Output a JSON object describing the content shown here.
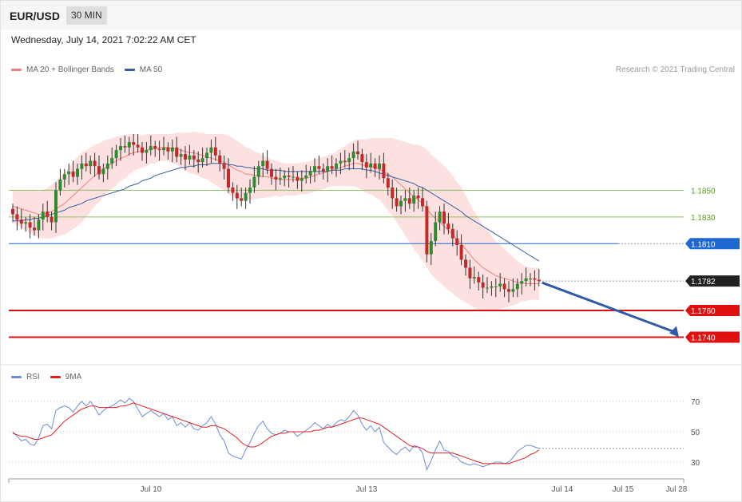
{
  "header": {
    "symbol": "EUR/USD",
    "timeframe": "30 MIN"
  },
  "datetime": "Wednesday, July 14, 2021 7:02:22 AM CET",
  "legend_main": [
    {
      "label": "MA 20 + Bollinger Bands",
      "color": "#f08080"
    },
    {
      "label": "MA 50",
      "color": "#3a5fa0"
    }
  ],
  "legend_rsi": [
    {
      "label": "RSI",
      "color": "#6b8cd8"
    },
    {
      "label": "9MA",
      "color": "#e02020"
    }
  ],
  "credit": "Research © 2021 Trading Central",
  "colors": {
    "up": "#2e8b2e",
    "down": "#c62828",
    "band": "#fde0e0",
    "ma20": "#f08080",
    "ma50": "#3a5fa0",
    "arrow": "#2f5aa8"
  },
  "chart_data": [
    {
      "type": "candlestick",
      "title": "EUR/USD",
      "ylim": [
        1.172,
        1.1935
      ],
      "levels": [
        {
          "label": "1.1850",
          "value": 1.185,
          "kind": "thin",
          "color": "#8dc060"
        },
        {
          "label": "1.1830",
          "value": 1.183,
          "kind": "thin",
          "color": "#8dc060"
        },
        {
          "label": "1.1810",
          "value": 1.181,
          "kind": "flag",
          "color": "#1e66d0"
        },
        {
          "label": "1.1782",
          "value": 1.1782,
          "kind": "flag",
          "color": "#222222"
        },
        {
          "label": "1.1760",
          "value": 1.176,
          "kind": "flag",
          "color": "#e01010"
        },
        {
          "label": "1.1740",
          "value": 1.174,
          "kind": "flag",
          "color": "#e01010"
        }
      ],
      "close": [
        1.1832,
        1.1828,
        1.1825,
        1.1826,
        1.1822,
        1.182,
        1.1828,
        1.1834,
        1.183,
        1.1826,
        1.185,
        1.1858,
        1.1862,
        1.1864,
        1.186,
        1.1866,
        1.187,
        1.1868,
        1.1872,
        1.1868,
        1.1862,
        1.1866,
        1.187,
        1.1874,
        1.188,
        1.1883,
        1.1882,
        1.1886,
        1.1884,
        1.1882,
        1.1878,
        1.188,
        1.1883,
        1.1881,
        1.188,
        1.1882,
        1.1879,
        1.1882,
        1.1875,
        1.1877,
        1.1873,
        1.1876,
        1.1873,
        1.1871,
        1.1874,
        1.1878,
        1.1882,
        1.1876,
        1.187,
        1.1866,
        1.1852,
        1.1848,
        1.1844,
        1.1842,
        1.1848,
        1.1852,
        1.186,
        1.1868,
        1.1872,
        1.1866,
        1.186,
        1.1858,
        1.1859,
        1.1861,
        1.186,
        1.186,
        1.1857,
        1.1859,
        1.1861,
        1.1864,
        1.1868,
        1.1866,
        1.1864,
        1.1868,
        1.1866,
        1.187,
        1.1872,
        1.1871,
        1.1874,
        1.1879,
        1.1877,
        1.1871,
        1.1867,
        1.187,
        1.1866,
        1.187,
        1.1859,
        1.1852,
        1.1844,
        1.1838,
        1.1842,
        1.1844,
        1.184,
        1.1846,
        1.1844,
        1.1838,
        1.1802,
        1.1812,
        1.1826,
        1.1834,
        1.1825,
        1.1821,
        1.1814,
        1.1809,
        1.1798,
        1.1792,
        1.1784,
        1.1785,
        1.1781,
        1.1777,
        1.1777,
        1.1778,
        1.1778,
        1.178,
        1.1776,
        1.1774,
        1.1776,
        1.178,
        1.1782,
        1.1784,
        1.1784,
        1.1783,
        1.1782
      ],
      "ma20": [
        1.1838,
        1.1837,
        1.1836,
        1.1835,
        1.1834,
        1.1833,
        1.1832,
        1.1832,
        1.1833,
        1.1834,
        1.1836,
        1.1838,
        1.184,
        1.1843,
        1.1846,
        1.1849,
        1.1852,
        1.1855,
        1.1858,
        1.1861,
        1.1863,
        1.1866,
        1.1868,
        1.187,
        1.1872,
        1.1874,
        1.1875,
        1.1877,
        1.1878,
        1.1879,
        1.1879,
        1.188,
        1.1881,
        1.1881,
        1.1882,
        1.1882,
        1.1882,
        1.1881,
        1.1881,
        1.188,
        1.1879,
        1.1878,
        1.1878,
        1.1877,
        1.1876,
        1.1875,
        1.1874,
        1.1873,
        1.1872,
        1.1871,
        1.1869,
        1.1867,
        1.1865,
        1.1864,
        1.1862,
        1.1862,
        1.1861,
        1.1861,
        1.186,
        1.186,
        1.1859,
        1.1859,
        1.1858,
        1.1858,
        1.1858,
        1.1858,
        1.1858,
        1.1859,
        1.1859,
        1.186,
        1.1861,
        1.1862,
        1.1863,
        1.1864,
        1.1865,
        1.1866,
        1.1867,
        1.1868,
        1.1869,
        1.187,
        1.187,
        1.1869,
        1.1868,
        1.1868,
        1.1867,
        1.1866,
        1.1864,
        1.1862,
        1.186,
        1.1857,
        1.1854,
        1.1851,
        1.1848,
        1.1845,
        1.1843,
        1.184,
        1.1836,
        1.1832,
        1.1829,
        1.1826,
        1.1823,
        1.182,
        1.1817,
        1.1813,
        1.181,
        1.1806,
        1.1802,
        1.1798,
        1.1795,
        1.1792,
        1.179,
        1.1788,
        1.1786,
        1.1785,
        1.1784,
        1.1783,
        1.1782,
        1.1781,
        1.1781,
        1.178,
        1.178,
        1.178,
        1.178
      ],
      "ma50": [
        1.1827,
        1.1827,
        1.1827,
        1.1828,
        1.1828,
        1.1829,
        1.1829,
        1.183,
        1.1831,
        1.1832,
        1.1833,
        1.1834,
        1.1835,
        1.1837,
        1.1838,
        1.1839,
        1.184,
        1.1842,
        1.1843,
        1.1844,
        1.1845,
        1.1846,
        1.1847,
        1.1848,
        1.1849,
        1.185,
        1.1851,
        1.1853,
        1.1854,
        1.1855,
        1.1857,
        1.1858,
        1.1859,
        1.1861,
        1.1862,
        1.1863,
        1.1864,
        1.1865,
        1.1866,
        1.1867,
        1.1867,
        1.1868,
        1.1868,
        1.1869,
        1.1869,
        1.1869,
        1.187,
        1.187,
        1.187,
        1.187,
        1.1869,
        1.1869,
        1.1868,
        1.1868,
        1.1867,
        1.1867,
        1.1866,
        1.1866,
        1.1866,
        1.1865,
        1.1865,
        1.1865,
        1.1865,
        1.1864,
        1.1864,
        1.1864,
        1.1864,
        1.1864,
        1.1864,
        1.1864,
        1.1864,
        1.1864,
        1.1864,
        1.1864,
        1.1865,
        1.1865,
        1.1865,
        1.1866,
        1.1866,
        1.1866,
        1.1866,
        1.1866,
        1.1865,
        1.1865,
        1.1864,
        1.1863,
        1.1862,
        1.1861,
        1.186,
        1.1859,
        1.1858,
        1.1857,
        1.1856,
        1.1855,
        1.1853,
        1.1852,
        1.185,
        1.1848,
        1.1846,
        1.1844,
        1.1842,
        1.184,
        1.1838,
        1.1836,
        1.1834,
        1.1831,
        1.1829,
        1.1827,
        1.1825,
        1.1823,
        1.1821,
        1.1819,
        1.1817,
        1.1815,
        1.1813,
        1.1811,
        1.1809,
        1.1807,
        1.1805,
        1.1803,
        1.1801,
        1.1799,
        1.1797
      ],
      "bb_width": [
        0.0012,
        0.0013,
        0.0014,
        0.0015,
        0.0016,
        0.0017,
        0.0017,
        0.0018,
        0.0019,
        0.002,
        0.0021,
        0.0022,
        0.0023,
        0.0024,
        0.0025,
        0.0026,
        0.0026,
        0.0025,
        0.0024,
        0.0023,
        0.0022,
        0.0021,
        0.002,
        0.0019,
        0.0018,
        0.0017,
        0.0016,
        0.0015,
        0.0014,
        0.0013,
        0.0012,
        0.0012,
        0.0011,
        0.0011,
        0.001,
        0.001,
        0.001,
        0.0011,
        0.0012,
        0.0013,
        0.0014,
        0.0015,
        0.0016,
        0.0016,
        0.0017,
        0.0017,
        0.0018,
        0.0019,
        0.002,
        0.0021,
        0.0022,
        0.0022,
        0.0022,
        0.0021,
        0.002,
        0.0019,
        0.0018,
        0.0017,
        0.0016,
        0.0015,
        0.0014,
        0.0013,
        0.0013,
        0.0012,
        0.0012,
        0.0012,
        0.0012,
        0.0012,
        0.0012,
        0.0012,
        0.0012,
        0.0012,
        0.0012,
        0.0012,
        0.0012,
        0.0013,
        0.0014,
        0.0015,
        0.0016,
        0.0017,
        0.0018,
        0.0019,
        0.002,
        0.0021,
        0.0022,
        0.0023,
        0.0025,
        0.0027,
        0.0029,
        0.0031,
        0.0033,
        0.0035,
        0.0037,
        0.0039,
        0.0041,
        0.0043,
        0.0044,
        0.0045,
        0.0045,
        0.0045,
        0.0045,
        0.0045,
        0.0044,
        0.0043,
        0.0042,
        0.004,
        0.0038,
        0.0036,
        0.0034,
        0.0032,
        0.003,
        0.0028,
        0.0026,
        0.0024,
        0.0022,
        0.002,
        0.0018,
        0.0016,
        0.0014,
        0.0013,
        0.0012,
        0.0012,
        0.0012,
        0.0012,
        0.0012
      ],
      "forecast": {
        "from": 1.1782,
        "to": 1.174
      }
    },
    {
      "type": "line",
      "title": "RSI",
      "ylim": [
        20,
        80
      ],
      "yticks": [
        70,
        50,
        30
      ],
      "xticks": [
        "Jul 10",
        "Jul 13",
        "Jul 14",
        "Jul 15",
        "Jul 28"
      ],
      "series": [
        {
          "name": "RSI",
          "color": "#6b8cd8",
          "values": [
            50,
            47,
            44,
            45,
            42,
            41,
            46,
            54,
            55,
            52,
            64,
            66,
            67,
            66,
            63,
            67,
            70,
            67,
            70,
            66,
            61,
            64,
            66,
            67,
            69,
            71,
            69,
            72,
            70,
            65,
            60,
            62,
            64,
            62,
            60,
            62,
            58,
            60,
            54,
            56,
            53,
            56,
            52,
            51,
            54,
            56,
            60,
            55,
            48,
            44,
            36,
            34,
            33,
            32,
            38,
            43,
            49,
            54,
            57,
            52,
            49,
            48,
            49,
            51,
            50,
            50,
            47,
            49,
            51,
            53,
            56,
            54,
            52,
            55,
            53,
            56,
            58,
            57,
            60,
            64,
            61,
            55,
            51,
            54,
            50,
            53,
            43,
            40,
            37,
            35,
            38,
            40,
            37,
            41,
            40,
            36,
            25,
            31,
            38,
            44,
            38,
            37,
            34,
            33,
            30,
            29,
            28,
            29,
            28,
            27,
            28,
            29,
            30,
            30,
            29,
            30,
            33,
            37,
            39,
            41,
            41,
            40,
            39
          ]
        },
        {
          "name": "9MA",
          "color": "#e02020",
          "values": [
            49,
            48,
            47,
            47,
            46,
            45,
            45,
            46,
            47,
            48,
            51,
            54,
            57,
            59,
            61,
            63,
            65,
            66,
            67,
            67,
            66,
            66,
            66,
            66,
            66,
            67,
            67,
            68,
            69,
            68,
            67,
            66,
            65,
            64,
            63,
            62,
            61,
            60,
            59,
            58,
            57,
            56,
            55,
            54,
            53,
            53,
            54,
            54,
            53,
            52,
            50,
            48,
            46,
            43,
            41,
            40,
            40,
            41,
            43,
            45,
            47,
            48,
            49,
            49,
            50,
            50,
            50,
            50,
            50,
            50,
            51,
            51,
            52,
            53,
            53,
            54,
            55,
            56,
            57,
            58,
            59,
            59,
            58,
            57,
            56,
            55,
            53,
            51,
            49,
            47,
            45,
            43,
            41,
            40,
            40,
            39,
            37,
            36,
            36,
            36,
            36,
            36,
            36,
            35,
            34,
            33,
            32,
            31,
            30,
            29,
            29,
            29,
            29,
            29,
            29,
            29,
            30,
            31,
            32,
            33,
            35,
            36,
            38
          ]
        }
      ]
    }
  ]
}
